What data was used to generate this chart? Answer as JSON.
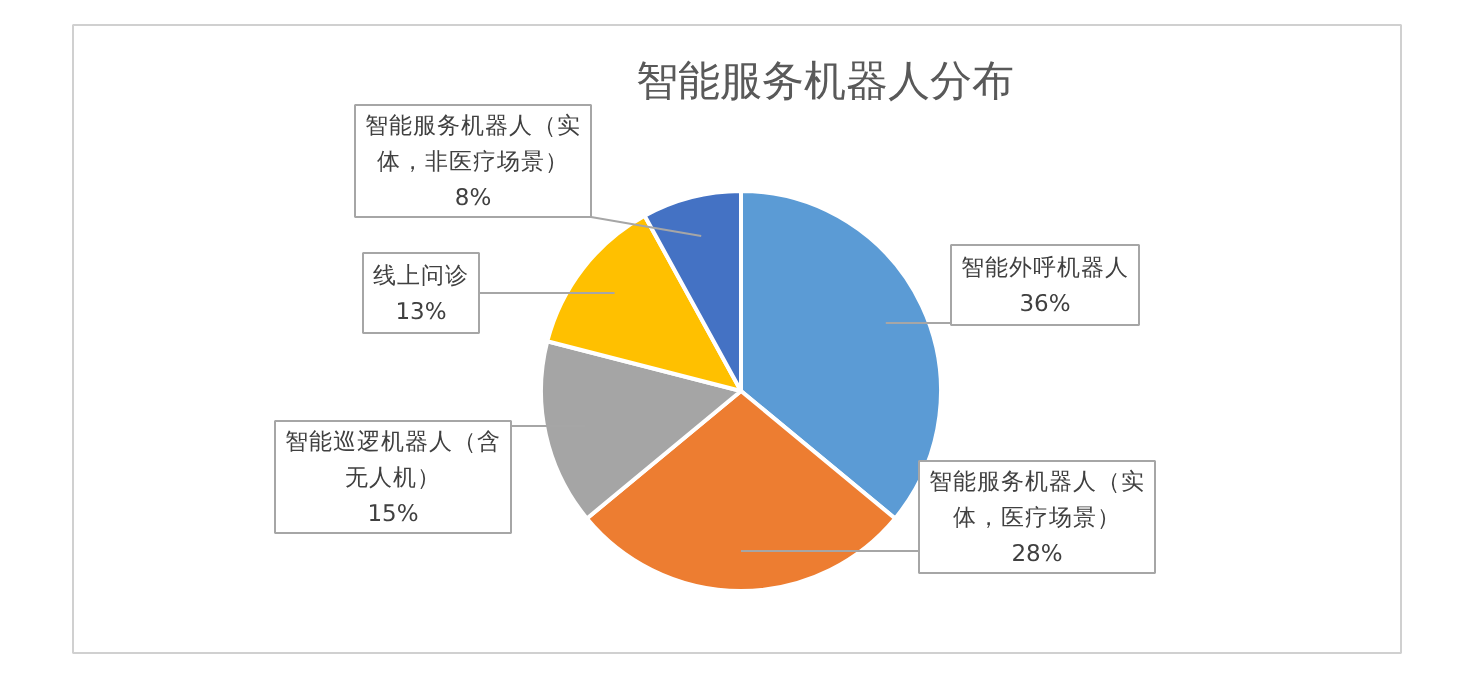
{
  "chart_data": {
    "type": "pie",
    "title": "智能服务机器人分布",
    "categories": [
      "智能外呼机器人",
      "智能服务机器人（实体，医疗场景）",
      "智能巡逻机器人（含无人机）",
      "线上问诊",
      "智能服务机器人（实体，非医疗场景）"
    ],
    "values": [
      36,
      28,
      15,
      13,
      8
    ],
    "colors": [
      "#5b9bd5",
      "#ed7d31",
      "#a5a5a5",
      "#ffc000",
      "#4472c4"
    ],
    "value_labels": [
      "36%",
      "28%",
      "15%",
      "13%",
      "8%"
    ]
  }
}
